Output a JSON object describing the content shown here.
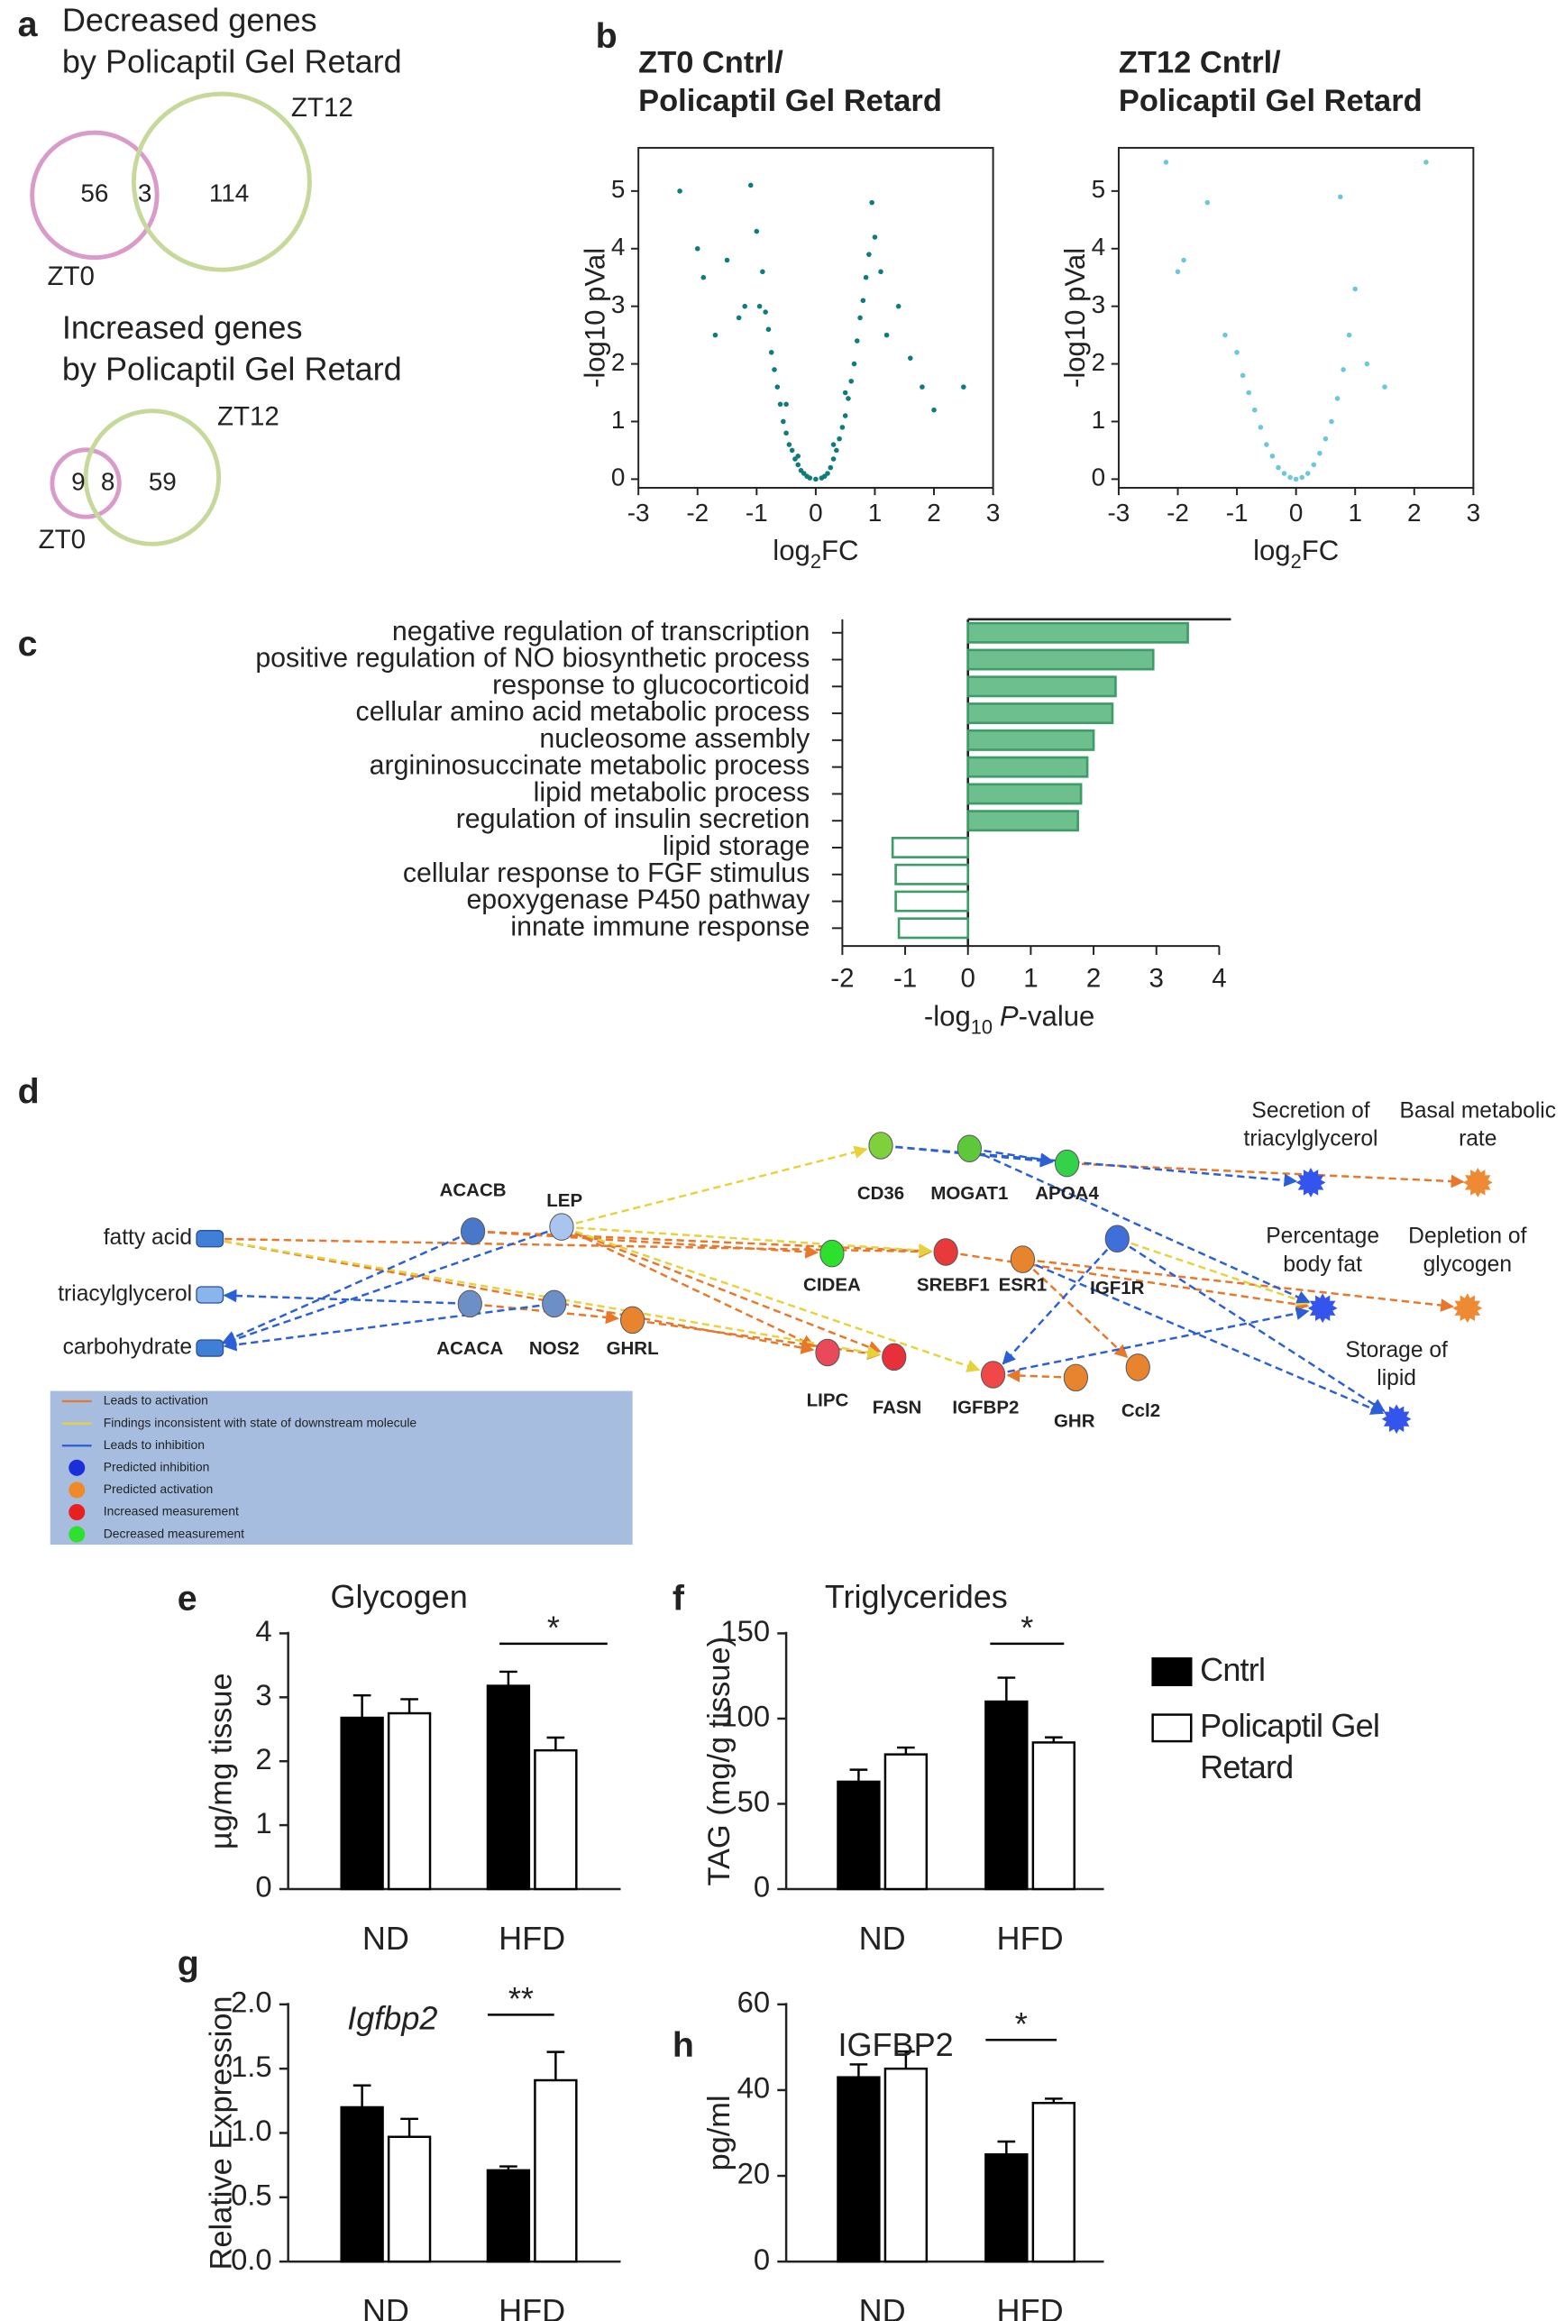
{
  "panel_labels": [
    "a",
    "b",
    "c",
    "d",
    "e",
    "f",
    "g",
    "h"
  ],
  "chart_data": [
    {
      "type": "venn",
      "title": "Decreased genes\n by Policaptil Gel Retard",
      "sets": [
        {
          "name": "ZT0",
          "color": "#d99bc9"
        },
        {
          "name": "ZT12",
          "color": "#c6d99b"
        }
      ],
      "values": [
        56,
        3,
        114
      ]
    },
    {
      "type": "venn",
      "title": "Increased genes\nby Policaptil Gel Retard",
      "sets": [
        {
          "name": "ZT0",
          "color": "#d99bc9"
        },
        {
          "name": "ZT12",
          "color": "#c6d99b"
        }
      ],
      "values": [
        9,
        8,
        59
      ]
    },
    {
      "type": "volcano",
      "title": "ZT0 Cntrl/\nPolicaptil Gel Retard",
      "color": "#0f7b7b",
      "xlabel": [
        "log",
        "2",
        "FC"
      ],
      "ylabel": "-log10 pVal",
      "xlim": [
        -3,
        3
      ],
      "ylim": [
        -0.15,
        5.75
      ],
      "xticks": [
        -3,
        -2,
        -1,
        0,
        1,
        2,
        3
      ],
      "yticks": [
        0,
        1,
        2,
        3,
        4,
        5
      ],
      "x": [
        -2.3,
        -2.0,
        -1.9,
        -1.7,
        -1.5,
        -1.3,
        -1.2,
        -1.1,
        -1.0,
        -0.9,
        -0.85,
        -0.8,
        -0.75,
        -0.7,
        -0.65,
        -0.6,
        -0.55,
        -0.5,
        -0.45,
        -0.4,
        -0.35,
        -0.3,
        -0.25,
        -0.2,
        -0.15,
        -0.1,
        0,
        0.1,
        0.15,
        0.2,
        0.25,
        0.3,
        0.35,
        0.4,
        0.45,
        0.5,
        0.55,
        0.6,
        0.65,
        0.7,
        0.75,
        0.8,
        0.85,
        0.9,
        1.0,
        1.1,
        1.2,
        1.4,
        1.6,
        1.8,
        2.0,
        2.5,
        0.95,
        -0.95,
        0.3,
        -0.3,
        0.5,
        -0.5
      ],
      "values": [
        5.0,
        4.0,
        3.5,
        2.5,
        3.8,
        2.8,
        3.0,
        5.1,
        4.3,
        3.6,
        2.9,
        2.6,
        2.2,
        1.9,
        1.6,
        1.3,
        1.0,
        0.8,
        0.6,
        0.5,
        0.35,
        0.25,
        0.15,
        0.1,
        0.05,
        0.02,
        0,
        0.02,
        0.05,
        0.1,
        0.2,
        0.35,
        0.5,
        0.7,
        0.9,
        1.1,
        1.4,
        1.7,
        2.0,
        2.4,
        2.8,
        3.1,
        3.5,
        3.9,
        4.2,
        3.6,
        2.5,
        3.0,
        2.1,
        1.6,
        1.2,
        1.6,
        4.8,
        3.0,
        0.6,
        0.4,
        1.5,
        1.3
      ]
    },
    {
      "type": "volcano",
      "title": "ZT12 Cntrl/\nPolicaptil Gel Retard",
      "color": "#6cc8d8",
      "xlabel": [
        "log",
        "2",
        "FC"
      ],
      "ylabel": "-log10 pVal",
      "xlim": [
        -3,
        3
      ],
      "ylim": [
        -0.15,
        5.75
      ],
      "xticks": [
        -3,
        -2,
        -1,
        0,
        1,
        2,
        3
      ],
      "yticks": [
        0,
        1,
        2,
        3,
        4,
        5
      ],
      "x": [
        -2.2,
        -1.9,
        -1.5,
        -1.2,
        -1.0,
        -0.9,
        -0.8,
        -0.7,
        -0.6,
        -0.5,
        -0.4,
        -0.3,
        -0.2,
        -0.1,
        0,
        0.1,
        0.2,
        0.3,
        0.4,
        0.5,
        0.6,
        0.7,
        0.8,
        0.9,
        1.0,
        1.2,
        1.5,
        2.2,
        -2.0,
        0.75
      ],
      "values": [
        5.5,
        3.8,
        4.8,
        2.5,
        2.2,
        1.8,
        1.5,
        1.2,
        0.9,
        0.6,
        0.4,
        0.2,
        0.1,
        0.03,
        0,
        0.03,
        0.1,
        0.25,
        0.45,
        0.7,
        1.0,
        1.4,
        1.9,
        2.5,
        3.3,
        2.0,
        1.6,
        5.5,
        3.6,
        4.9
      ]
    },
    {
      "type": "barh",
      "color": "#6dbf8e",
      "edgecolor": "#3d9c67",
      "categories": [
        "negative regulation of transcription",
        "positive regulation of NO biosynthetic process",
        "response to glucocorticoid",
        "cellular amino acid metabolic process",
        "nucleosome assembly",
        "argininosuccinate metabolic process",
        "lipid metabolic process",
        "regulation of insulin secretion",
        "lipid storage",
        "cellular response to FGF stimulus",
        "epoxygenase P450 pathway",
        "innate immune response"
      ],
      "values": [
        3.5,
        2.95,
        2.35,
        2.3,
        2.0,
        1.9,
        1.8,
        1.75,
        -1.2,
        -1.15,
        -1.15,
        -1.1
      ],
      "filled": [
        true,
        true,
        true,
        true,
        true,
        true,
        true,
        true,
        false,
        false,
        false,
        false
      ],
      "xlabel": [
        "-log",
        "10",
        "P",
        "-value"
      ],
      "xlim": [
        -2,
        4
      ],
      "xticks": [
        -2,
        -1,
        0,
        1,
        2,
        3,
        4
      ]
    },
    {
      "type": "bar",
      "title": "Glycogen",
      "ylabel": "µg/mg tissue",
      "categories": [
        "ND",
        "HFD"
      ],
      "ylim": [
        0,
        4
      ],
      "yticks": [
        0,
        1,
        2,
        3,
        4
      ],
      "legend": "right",
      "series": [
        {
          "name": "Cntrl",
          "color": "#000000",
          "values": [
            2.68,
            3.18
          ],
          "errors": [
            0.35,
            0.22
          ]
        },
        {
          "name": "Policaptil Gel\nRetard",
          "color": "#ffffff",
          "values": [
            2.75,
            2.17
          ],
          "errors": [
            0.22,
            0.2
          ]
        }
      ],
      "annotations": [
        {
          "text": "*"
        }
      ]
    },
    {
      "type": "bar",
      "title": "Triglycerides",
      "ylabel": "TAG (mg/g tissue)",
      "categories": [
        "ND",
        "HFD"
      ],
      "ylim": [
        0,
        150
      ],
      "yticks": [
        0,
        50,
        100,
        150
      ],
      "series": [
        {
          "color": "#000000",
          "values": [
            63,
            110
          ],
          "errors": [
            7,
            14
          ]
        },
        {
          "color": "#ffffff",
          "values": [
            79,
            86
          ],
          "errors": [
            4,
            3
          ]
        }
      ],
      "annotations": [
        {
          "text": "*"
        }
      ]
    },
    {
      "type": "bar",
      "title": "Igfbp2",
      "title_style": "italic",
      "ylabel": "Relative Expression",
      "categories": [
        "ND",
        "HFD"
      ],
      "ylim": [
        0,
        2
      ],
      "yticks": [
        {
          "value": 0,
          "label": "0.0"
        },
        {
          "value": 0.5,
          "label": "0.5"
        },
        {
          "value": 1,
          "label": "1.0"
        },
        {
          "value": 1.5,
          "label": "1.5"
        },
        {
          "value": 2,
          "label": "2.0"
        }
      ],
      "series": [
        {
          "color": "#000000",
          "values": [
            1.2,
            0.71
          ],
          "errors": [
            0.17,
            0.03
          ]
        },
        {
          "color": "#ffffff",
          "values": [
            0.97,
            1.41
          ],
          "errors": [
            0.14,
            0.22
          ]
        }
      ],
      "annotations": [
        {
          "text": "**"
        }
      ]
    },
    {
      "type": "bar",
      "title": "IGFBP2",
      "ylabel": "pg/ml",
      "categories": [
        "ND",
        "HFD"
      ],
      "ylim": [
        0,
        60
      ],
      "yticks": [
        0,
        20,
        40,
        60
      ],
      "series": [
        {
          "color": "#000000",
          "values": [
            43,
            25
          ],
          "errors": [
            3,
            3
          ]
        },
        {
          "color": "#ffffff",
          "values": [
            45,
            37
          ],
          "errors": [
            4,
            1
          ]
        }
      ],
      "annotations": [
        {
          "text": "*"
        }
      ]
    }
  ],
  "network": {
    "nodes": [
      {
        "label": "fatty acid",
        "color": "#3f7fd8",
        "shape": "chemical"
      },
      {
        "label": "triacylglycerol",
        "color": "#8ab4ec",
        "shape": "chemical"
      },
      {
        "label": "carbohydrate",
        "color": "#3f7fd8",
        "shape": "chemical"
      },
      {
        "label": "ACACB",
        "color": "#4a78c8",
        "shape": "protein"
      },
      {
        "label": "LEP",
        "color": "#a9c4ee",
        "shape": "protein"
      },
      {
        "label": "ACACA",
        "color": "#6d8fc8",
        "shape": "protein"
      },
      {
        "label": "NOS2",
        "color": "#6d8fc8",
        "shape": "protein"
      },
      {
        "label": "GHRL",
        "color": "#e8832e",
        "shape": "protein"
      },
      {
        "label": "CD36",
        "color": "#7ed13a",
        "shape": "protein"
      },
      {
        "label": "MOGAT1",
        "color": "#5cc83a",
        "shape": "protein"
      },
      {
        "label": "APOA4",
        "color": "#33d24a",
        "shape": "protein"
      },
      {
        "label": "CIDEA",
        "color": "#2ee02e",
        "shape": "protein"
      },
      {
        "label": "SREBF1",
        "color": "#e83a3a",
        "shape": "protein"
      },
      {
        "label": "ESR1",
        "color": "#e8832e",
        "shape": "protein"
      },
      {
        "label": "IGF1R",
        "color": "#3f6fd8",
        "shape": "protein"
      },
      {
        "label": "LIPC",
        "color": "#e84a5a",
        "shape": "protein"
      },
      {
        "label": "FASN",
        "color": "#e8303a",
        "shape": "protein"
      },
      {
        "label": "IGFBP2",
        "color": "#f04848",
        "shape": "protein"
      },
      {
        "label": "GHR",
        "color": "#e8832e",
        "shape": "protein"
      },
      {
        "label": "Ccl2",
        "color": "#e8832e",
        "shape": "protein"
      },
      {
        "label": "Secretion of\ntriacylglycerol",
        "color": "#3355ee",
        "shape": "function"
      },
      {
        "label": "Basal metabolic\nrate",
        "color": "#ee8a33",
        "shape": "function"
      },
      {
        "label": "Percentage\nbody fat",
        "color": "#3355ee",
        "shape": "function"
      },
      {
        "label": "Depletion of\nglycogen",
        "color": "#ee8a33",
        "shape": "function"
      },
      {
        "label": "Storage of\nlipid",
        "color": "#3355ee",
        "shape": "function"
      }
    ],
    "edges": [
      [
        0,
        12,
        0
      ],
      [
        0,
        15,
        0
      ],
      [
        3,
        11,
        0
      ],
      [
        3,
        12,
        0
      ],
      [
        4,
        15,
        0
      ],
      [
        4,
        16,
        0
      ],
      [
        5,
        7,
        0
      ],
      [
        7,
        16,
        0
      ],
      [
        13,
        19,
        0
      ],
      [
        18,
        17,
        0
      ],
      [
        12,
        22,
        0
      ],
      [
        10,
        21,
        0
      ],
      [
        13,
        23,
        0
      ],
      [
        0,
        16,
        1
      ],
      [
        4,
        8,
        1
      ],
      [
        4,
        17,
        1
      ],
      [
        4,
        12,
        1
      ],
      [
        14,
        22,
        1
      ],
      [
        3,
        2,
        2
      ],
      [
        4,
        2,
        2
      ],
      [
        5,
        1,
        2
      ],
      [
        6,
        2,
        2
      ],
      [
        8,
        20,
        2
      ],
      [
        9,
        10,
        2
      ],
      [
        8,
        10,
        2
      ],
      [
        14,
        24,
        2
      ],
      [
        17,
        22,
        2
      ],
      [
        14,
        17,
        2
      ],
      [
        9,
        22,
        2
      ],
      [
        13,
        24,
        2
      ]
    ],
    "legend": [
      {
        "label": "Leads to activation",
        "color": "#e8772a",
        "kind": "line"
      },
      {
        "label": "Findings inconsistent with state of downstream molecule",
        "color": "#e6d23a",
        "kind": "line"
      },
      {
        "label": "Leads to inhibition",
        "color": "#2a5fd8",
        "kind": "line"
      },
      {
        "label": "Predicted inhibition",
        "color": "#1a2fd8",
        "kind": "dot"
      },
      {
        "label": "Predicted activation",
        "color": "#f08a28",
        "kind": "dot"
      },
      {
        "label": "Increased measurement",
        "color": "#e82020",
        "kind": "dot"
      },
      {
        "label": "Decreased measurement",
        "color": "#30e030",
        "kind": "dot"
      }
    ]
  }
}
